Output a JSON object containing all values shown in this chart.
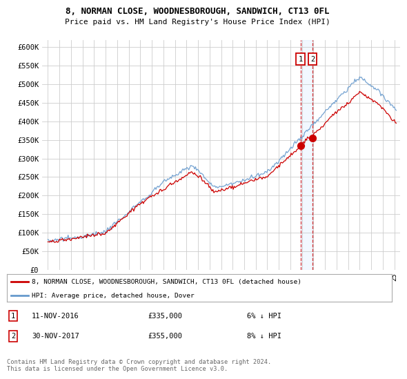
{
  "title": "8, NORMAN CLOSE, WOODNESBOROUGH, SANDWICH, CT13 0FL",
  "subtitle": "Price paid vs. HM Land Registry's House Price Index (HPI)",
  "ylim": [
    0,
    620000
  ],
  "yticks": [
    0,
    50000,
    100000,
    150000,
    200000,
    250000,
    300000,
    350000,
    400000,
    450000,
    500000,
    550000,
    600000
  ],
  "ytick_labels": [
    "£0",
    "£50K",
    "£100K",
    "£150K",
    "£200K",
    "£250K",
    "£300K",
    "£350K",
    "£400K",
    "£450K",
    "£500K",
    "£550K",
    "£600K"
  ],
  "xlim": [
    1994.5,
    2025.5
  ],
  "sale1_date": 2016.87,
  "sale1_price": 335000,
  "sale2_date": 2017.92,
  "sale2_price": 355000,
  "sale1_text": "11-NOV-2016",
  "sale1_amount": "£335,000",
  "sale1_pct": "6% ↓ HPI",
  "sale2_text": "30-NOV-2017",
  "sale2_amount": "£355,000",
  "sale2_pct": "8% ↓ HPI",
  "red_color": "#cc0000",
  "blue_color": "#6699cc",
  "legend_label1": "8, NORMAN CLOSE, WOODNESBOROUGH, SANDWICH, CT13 0FL (detached house)",
  "legend_label2": "HPI: Average price, detached house, Dover",
  "footer": "Contains HM Land Registry data © Crown copyright and database right 2024.\nThis data is licensed under the Open Government Licence v3.0.",
  "background_color": "#ffffff",
  "grid_color": "#cccccc",
  "shading_color": "#ddeeff"
}
